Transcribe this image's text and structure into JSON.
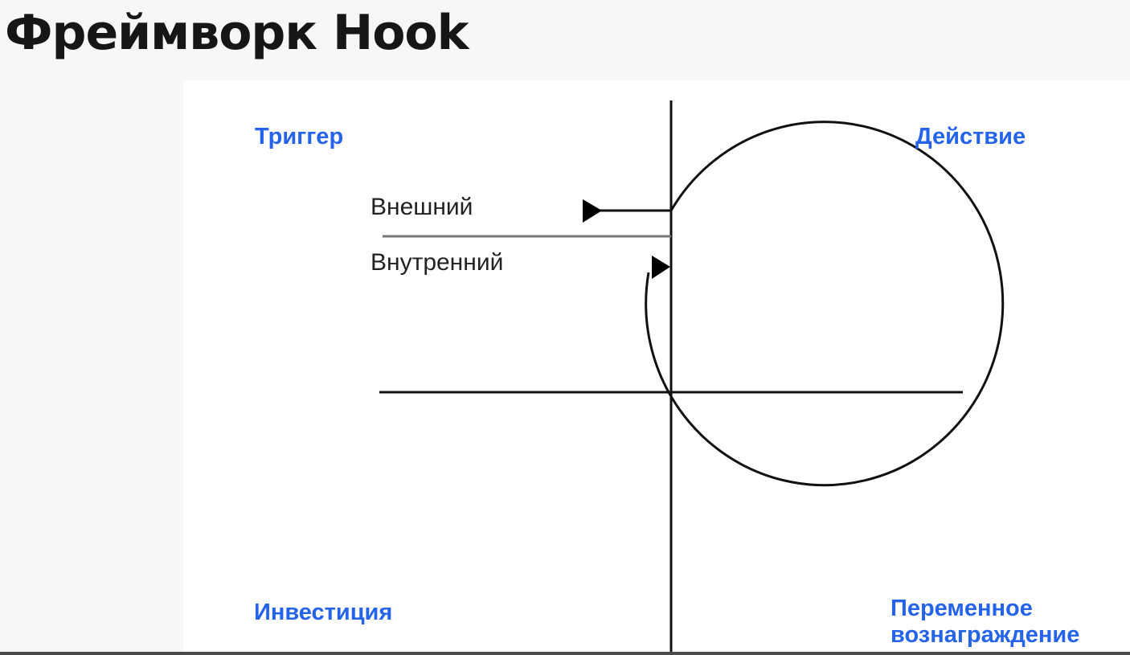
{
  "title": "Фреймворк Hook",
  "colors": {
    "background": "#f7f7f7",
    "panel": "#ffffff",
    "title_text": "#161616",
    "accent": "#2563eb",
    "line": "#111111",
    "label_text": "#222222"
  },
  "diagram": {
    "quadrants": {
      "trigger": "Триггер",
      "action": "Действие",
      "investment": "Инвестиция",
      "reward_line1": "Переменное",
      "reward_line2": "вознаграждение"
    },
    "trigger_types": {
      "external": "Внешний",
      "internal": "Внутренний"
    }
  }
}
